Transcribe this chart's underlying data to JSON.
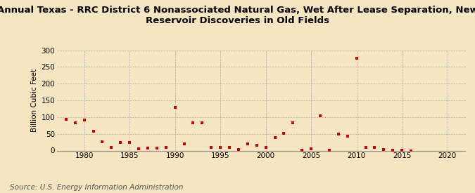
{
  "title": "Annual Texas - RRC District 6 Nonassociated Natural Gas, Wet After Lease Separation, New\nReservoir Discoveries in Old Fields",
  "ylabel": "Billion Cubic Feet",
  "source": "Source: U.S. Energy Information Administration",
  "background_color": "#f5e5c0",
  "plot_background": "#f5e5c0",
  "marker_color": "#cc0000",
  "xlim": [
    1977,
    2022
  ],
  "ylim": [
    0,
    300
  ],
  "yticks": [
    0,
    50,
    100,
    150,
    200,
    250,
    300
  ],
  "xticks": [
    1980,
    1985,
    1990,
    1995,
    2000,
    2005,
    2010,
    2015,
    2020
  ],
  "years": [
    1978,
    1979,
    1980,
    1981,
    1982,
    1983,
    1984,
    1985,
    1986,
    1987,
    1988,
    1989,
    1990,
    1991,
    1992,
    1993,
    1994,
    1995,
    1996,
    1997,
    1998,
    1999,
    2000,
    2001,
    2002,
    2003,
    2004,
    2005,
    2006,
    2007,
    2008,
    2009,
    2010,
    2011,
    2012,
    2013,
    2014,
    2015,
    2016
  ],
  "values": [
    93,
    83,
    92,
    57,
    26,
    10,
    25,
    25,
    5,
    7,
    8,
    10,
    128,
    20,
    83,
    83,
    10,
    10,
    10,
    3,
    20,
    15,
    10,
    38,
    52,
    82,
    2,
    6,
    103,
    2,
    50,
    44,
    275,
    10,
    10,
    3,
    2,
    1,
    0
  ],
  "title_fontsize": 9.5,
  "axis_fontsize": 7.5,
  "source_fontsize": 7.5
}
